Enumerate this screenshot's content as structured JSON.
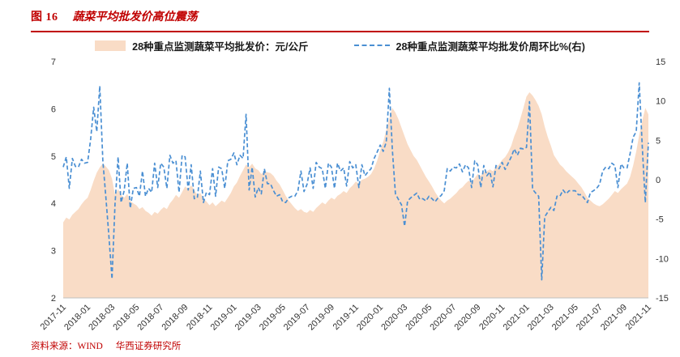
{
  "header": {
    "figure_label": "图 16",
    "title": "蔬菜平均批发价高位震荡"
  },
  "footer": {
    "source_label": "资料来源：WIND",
    "institute": "华西证券研究所"
  },
  "colors": {
    "accent_red": "#c00000",
    "area_fill": "#f9dcc6",
    "line_blue": "#4a8fd3",
    "axis_text": "#333333",
    "axis_line": "#bfbfbf"
  },
  "legend": [
    {
      "label": "28种重点监测蔬菜平均批发价：元/公斤",
      "type": "area",
      "color": "#f9dcc6"
    },
    {
      "label": "28种重点监测蔬菜平均批发价周环比%(右)",
      "type": "dashed-line",
      "color": "#4a8fd3"
    }
  ],
  "chart_data": {
    "type": "combo",
    "title": "蔬菜平均批发价高位震荡",
    "x_unit": "week",
    "x_tick_labels": [
      "2017-11",
      "2018-01",
      "2018-03",
      "2018-05",
      "2018-07",
      "2018-09",
      "2018-11",
      "2019-01",
      "2019-03",
      "2019-05",
      "2019-07",
      "2019-09",
      "2019-11",
      "2020-01",
      "2020-03",
      "2020-05",
      "2020-07",
      "2020-09",
      "2020-11",
      "2021-01",
      "2021-03",
      "2021-05",
      "2021-07",
      "2021-09",
      "2021-11"
    ],
    "x_ticks_every_n_points": 8,
    "left_axis": {
      "min": 2,
      "max": 7,
      "ticks": [
        2,
        3,
        4,
        5,
        6,
        7
      ]
    },
    "right_axis": {
      "min": -15,
      "max": 15,
      "ticks": [
        -15,
        -10,
        -5,
        0,
        5,
        10,
        15
      ]
    },
    "grid": false,
    "legend_position": "top",
    "series": [
      {
        "name": "28种重点监测蔬菜平均批发价：元/公斤",
        "type": "area",
        "axis": "left",
        "color": "#f9dcc6",
        "values": [
          3.6,
          3.7,
          3.66,
          3.76,
          3.82,
          3.88,
          3.98,
          4.06,
          4.12,
          4.28,
          4.48,
          4.65,
          4.76,
          4.84,
          4.78,
          4.7,
          4.52,
          4.18,
          4.3,
          4.18,
          4.12,
          4.2,
          4.05,
          4.0,
          3.96,
          3.88,
          3.92,
          3.84,
          3.8,
          3.74,
          3.82,
          3.78,
          3.86,
          3.92,
          3.88,
          4.0,
          4.08,
          4.18,
          4.12,
          4.24,
          4.36,
          4.3,
          4.38,
          4.28,
          4.18,
          4.22,
          4.1,
          4.04,
          3.96,
          4.02,
          3.94,
          4.0,
          4.06,
          4.02,
          4.12,
          4.22,
          4.36,
          4.44,
          4.58,
          4.7,
          4.82,
          4.76,
          4.84,
          4.74,
          4.7,
          4.62,
          4.68,
          4.66,
          4.64,
          4.58,
          4.48,
          4.4,
          4.28,
          4.16,
          4.06,
          3.98,
          3.9,
          3.84,
          3.88,
          3.82,
          3.8,
          3.86,
          3.82,
          3.9,
          3.96,
          4.02,
          3.98,
          4.06,
          4.12,
          4.08,
          4.16,
          4.2,
          4.26,
          4.22,
          4.32,
          4.38,
          4.46,
          4.42,
          4.5,
          4.52,
          4.56,
          4.62,
          4.74,
          4.9,
          5.12,
          5.3,
          5.55,
          5.8,
          6.02,
          5.92,
          5.78,
          5.6,
          5.42,
          5.25,
          5.12,
          5.0,
          4.92,
          4.8,
          4.68,
          4.56,
          4.46,
          4.36,
          4.24,
          4.14,
          4.06,
          4.0,
          4.06,
          4.1,
          4.16,
          4.22,
          4.3,
          4.34,
          4.42,
          4.48,
          4.44,
          4.54,
          4.62,
          4.58,
          4.66,
          4.68,
          4.72,
          4.68,
          4.76,
          4.82,
          4.92,
          4.98,
          5.08,
          5.22,
          5.42,
          5.58,
          5.8,
          6.02,
          6.26,
          6.35,
          6.28,
          6.18,
          6.06,
          5.88,
          5.62,
          5.4,
          5.22,
          5.02,
          4.92,
          4.82,
          4.76,
          4.68,
          4.62,
          4.56,
          4.5,
          4.42,
          4.34,
          4.24,
          4.12,
          4.06,
          4.0,
          3.96,
          3.94,
          3.98,
          4.04,
          4.1,
          4.18,
          4.26,
          4.22,
          4.3,
          4.36,
          4.42,
          4.56,
          4.8,
          5.1,
          5.45,
          5.75,
          6.02,
          5.88
        ]
      },
      {
        "name": "28种重点监测蔬菜平均批发价周环比%(右)",
        "type": "line",
        "style": "dashed",
        "axis": "right",
        "color": "#4a8fd3",
        "values": [
          1.6,
          2.9,
          -1.1,
          2.7,
          1.7,
          1.6,
          2.6,
          2.1,
          2.2,
          5.1,
          9.2,
          6.1,
          11.9,
          2.4,
          -2.2,
          -7.2,
          -12.6,
          -3.1,
          2.9,
          -2.9,
          -1.4,
          2.1,
          -3.6,
          -1.1,
          -1.0,
          -2.1,
          1.1,
          -2.1,
          -1.1,
          -1.6,
          2.1,
          -1.0,
          2.1,
          1.6,
          -1.1,
          3.1,
          2.1,
          2.4,
          -1.6,
          3.1,
          2.9,
          -1.3,
          1.9,
          -2.4,
          -2.3,
          1.1,
          -2.9,
          -1.6,
          -1.9,
          1.4,
          -2.1,
          1.6,
          1.4,
          -1.1,
          2.4,
          2.6,
          3.4,
          1.9,
          3.1,
          2.7,
          8.3,
          -1.3,
          1.6,
          -2.2,
          -1.0,
          -1.8,
          1.4,
          -0.5,
          -0.5,
          -1.4,
          -2.1,
          -1.9,
          -2.8,
          -2.9,
          -2.3,
          -2.1,
          -2.1,
          -1.4,
          1.1,
          -1.5,
          -0.6,
          1.5,
          -1.1,
          2.2,
          1.6,
          1.4,
          -1.1,
          2.1,
          1.6,
          -1.1,
          2.1,
          1.1,
          1.5,
          -0.8,
          2.3,
          1.5,
          1.9,
          -1.0,
          1.9,
          0.5,
          1.0,
          1.4,
          2.7,
          3.5,
          4.4,
          3.6,
          4.8,
          11.6,
          3.8,
          -1.8,
          -2.5,
          -3.2,
          -5.9,
          -2.7,
          -2.3,
          -2.0,
          -1.7,
          -2.5,
          -2.4,
          -2.7,
          -2.1,
          -2.4,
          -2.8,
          -2.3,
          -2.0,
          -1.4,
          1.4,
          1.1,
          1.6,
          1.5,
          2.0,
          1.0,
          1.9,
          1.5,
          -1.0,
          2.4,
          1.9,
          -1.0,
          1.8,
          0.5,
          1.0,
          -0.9,
          1.8,
          1.4,
          2.2,
          1.3,
          2.1,
          2.9,
          3.9,
          3.1,
          4.0,
          3.9,
          4.1,
          9.9,
          -1.2,
          -1.7,
          -2.1,
          -12.7,
          -4.7,
          -4.1,
          -3.5,
          -3.9,
          -2.1,
          -2.1,
          -1.3,
          -1.8,
          -1.4,
          -1.4,
          -1.4,
          -1.9,
          -1.9,
          -2.4,
          -2.9,
          -1.6,
          -1.4,
          -1.1,
          -0.6,
          1.1,
          1.6,
          1.4,
          2.1,
          1.8,
          -1.0,
          2.0,
          1.5,
          1.5,
          3.3,
          5.4,
          6.1,
          12.3,
          4.1,
          -2.9,
          4.7
        ]
      }
    ]
  }
}
